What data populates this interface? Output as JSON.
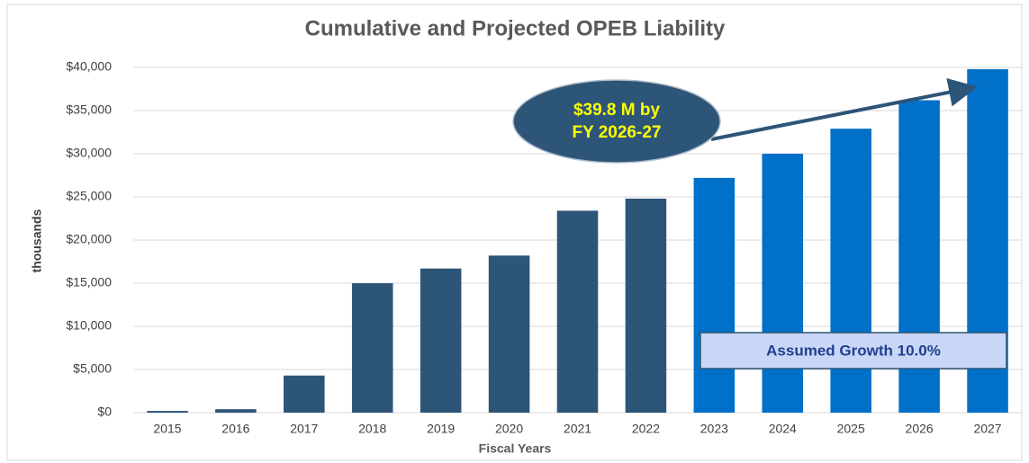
{
  "chart_data": {
    "type": "bar",
    "title": "Cumulative and Projected OPEB Liability",
    "x_label": "Fiscal Years",
    "y_label": "thousands",
    "categories": [
      "2015",
      "2016",
      "2017",
      "2018",
      "2019",
      "2020",
      "2021",
      "2022",
      "2023",
      "2024",
      "2025",
      "2026",
      "2027"
    ],
    "values": [
      200,
      400,
      4300,
      15000,
      16700,
      18200,
      23400,
      24800,
      27200,
      30000,
      32900,
      36200,
      39800
    ],
    "colors": [
      "#2d5578",
      "#2d5578",
      "#2d5578",
      "#2d5578",
      "#2d5578",
      "#2d5578",
      "#2d5578",
      "#2d5578",
      "#0070c8",
      "#0070c8",
      "#0070c8",
      "#0070c8",
      "#0070c8"
    ],
    "ylim": [
      0,
      40000
    ],
    "yticks": [
      {
        "value": 0,
        "label": "$0"
      },
      {
        "value": 5000,
        "label": "$5,000"
      },
      {
        "value": 10000,
        "label": "$10,000"
      },
      {
        "value": 15000,
        "label": "$15,000"
      },
      {
        "value": 20000,
        "label": "$20,000"
      },
      {
        "value": 25000,
        "label": "$25,000"
      },
      {
        "value": 30000,
        "label": "$30,000"
      },
      {
        "value": 35000,
        "label": "$35,000"
      },
      {
        "value": 40000,
        "label": "$40,000"
      }
    ],
    "grid": true,
    "annotations": {
      "callout": [
        "$39.8 M by",
        "FY 2026-27"
      ],
      "growth_box": "Assumed Growth 10.0%"
    }
  }
}
